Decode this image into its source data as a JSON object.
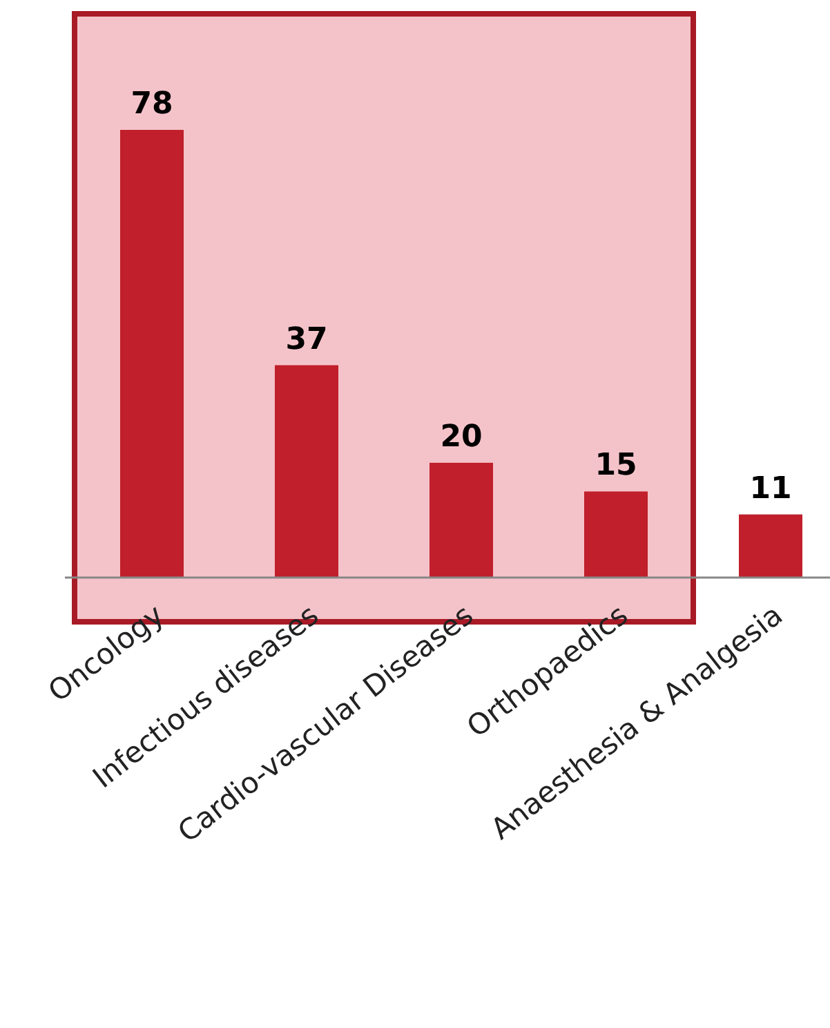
{
  "chart_data": {
    "type": "bar",
    "categories": [
      "Oncology",
      "Infectious diseases",
      "Cardio-vascular Diseases",
      "Orthopaedics",
      "Anaesthesia & Analgesia"
    ],
    "values": [
      78,
      37,
      20,
      15,
      11
    ],
    "color": "#c01f2b",
    "data_labels": true,
    "bands": [
      {
        "axis": "x",
        "from": "Oncology",
        "to": "Orthopaedics",
        "color": "#f4c3c9"
      }
    ]
  }
}
